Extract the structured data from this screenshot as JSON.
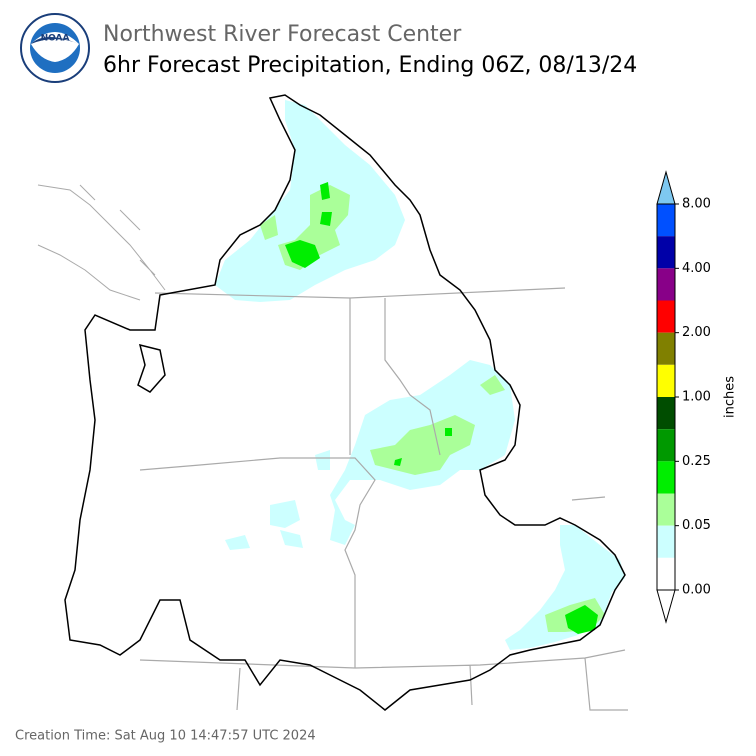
{
  "header": {
    "title": "Northwest River Forecast Center",
    "subtitle": "6hr Forecast Precipitation, Ending 06Z, 08/13/24",
    "logo_text": "NOAA"
  },
  "legend": {
    "label": "inches",
    "ticks": [
      "8.00",
      "4.00",
      "2.00",
      "1.00",
      "0.25",
      "0.05",
      "0.00"
    ],
    "colors": [
      "#0050ff",
      "#0000a8",
      "#880088",
      "#ff0000",
      "#808000",
      "#ffff00",
      "#004d00",
      "#009900",
      "#00ee00",
      "#aaff99",
      "#ccffff",
      "#ffffff"
    ],
    "over_color": "#7ec8f0",
    "under_color": "#ffffff"
  },
  "footer": {
    "creation_time": "Creation Time: Sat Aug 10 14:47:57 UTC 2024"
  }
}
